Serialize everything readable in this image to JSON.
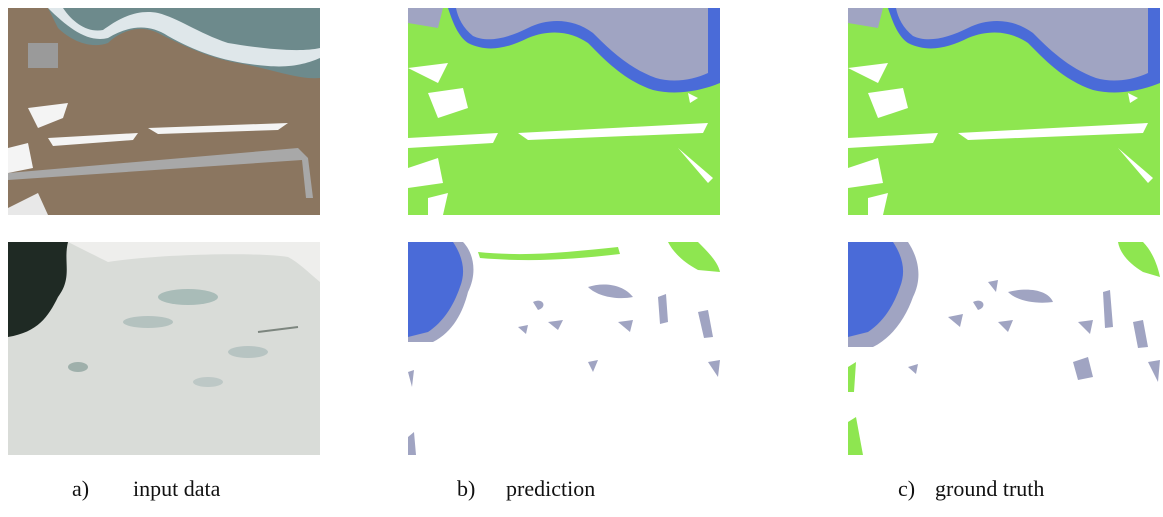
{
  "captions": [
    {
      "label": "a)",
      "text": "input data"
    },
    {
      "label": "b)",
      "text": "prediction"
    },
    {
      "label": "c)",
      "text": "ground truth"
    }
  ]
}
